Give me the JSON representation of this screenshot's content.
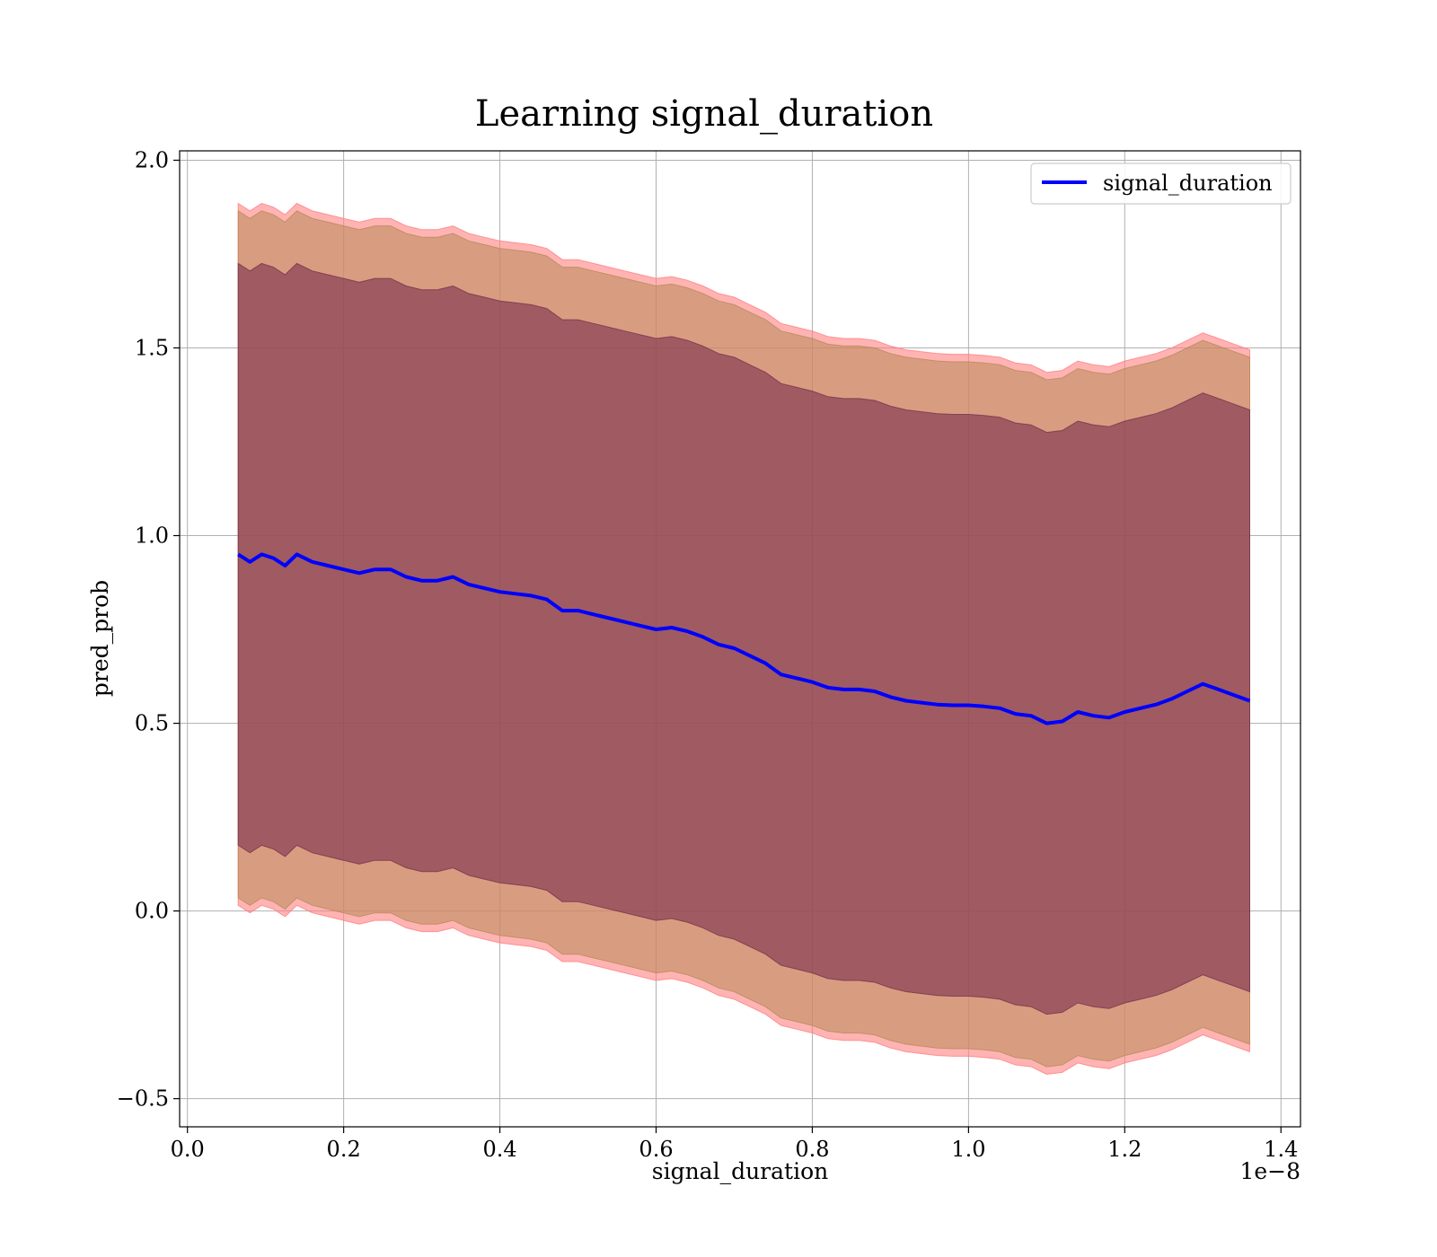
{
  "chart_data": {
    "type": "line",
    "title": "Learning signal_duration",
    "xlabel": "signal_duration",
    "ylabel": "pred_prob",
    "x_offset_label": "1e−8",
    "xlim": [
      -0.01,
      1.425
    ],
    "ylim": [
      -0.575,
      2.025
    ],
    "x_ticks": [
      0.0,
      0.2,
      0.4,
      0.6,
      0.8,
      1.0,
      1.2,
      1.4
    ],
    "x_tick_labels": [
      "0.0",
      "0.2",
      "0.4",
      "0.6",
      "0.8",
      "1.0",
      "1.2",
      "1.4"
    ],
    "y_ticks": [
      -0.5,
      0.0,
      0.5,
      1.0,
      1.5,
      2.0
    ],
    "y_tick_labels": [
      "−0.5",
      "0.0",
      "0.5",
      "1.0",
      "1.5",
      "2.0"
    ],
    "grid": true,
    "legend_position": "top-right",
    "series": [
      {
        "name": "signal_duration",
        "color": "#0000ff",
        "x": [
          0.065,
          0.08,
          0.095,
          0.11,
          0.125,
          0.14,
          0.16,
          0.18,
          0.2,
          0.22,
          0.24,
          0.26,
          0.28,
          0.3,
          0.32,
          0.34,
          0.36,
          0.38,
          0.4,
          0.42,
          0.44,
          0.46,
          0.48,
          0.5,
          0.52,
          0.54,
          0.56,
          0.58,
          0.6,
          0.62,
          0.64,
          0.66,
          0.68,
          0.7,
          0.72,
          0.74,
          0.76,
          0.78,
          0.8,
          0.82,
          0.84,
          0.86,
          0.88,
          0.9,
          0.92,
          0.94,
          0.96,
          0.98,
          1.0,
          1.02,
          1.04,
          1.06,
          1.08,
          1.1,
          1.12,
          1.14,
          1.16,
          1.18,
          1.2,
          1.22,
          1.24,
          1.26,
          1.28,
          1.3,
          1.32,
          1.34,
          1.36
        ],
        "y": [
          0.95,
          0.93,
          0.95,
          0.94,
          0.92,
          0.95,
          0.93,
          0.92,
          0.91,
          0.9,
          0.91,
          0.91,
          0.89,
          0.88,
          0.88,
          0.89,
          0.87,
          0.86,
          0.85,
          0.845,
          0.84,
          0.83,
          0.8,
          0.8,
          0.79,
          0.78,
          0.77,
          0.76,
          0.75,
          0.755,
          0.745,
          0.73,
          0.71,
          0.7,
          0.68,
          0.66,
          0.63,
          0.62,
          0.61,
          0.595,
          0.59,
          0.59,
          0.585,
          0.57,
          0.56,
          0.555,
          0.55,
          0.548,
          0.548,
          0.545,
          0.54,
          0.525,
          0.52,
          0.5,
          0.505,
          0.53,
          0.52,
          0.515,
          0.53,
          0.54,
          0.55,
          0.565,
          0.585,
          0.605,
          0.59,
          0.575,
          0.56
        ]
      }
    ],
    "bands": [
      {
        "label": "outer",
        "color": "#ff8080",
        "opacity": 0.6,
        "offset": 0.935
      },
      {
        "label": "middle",
        "color": "#b88a58",
        "opacity": 0.55,
        "offset": 0.915
      },
      {
        "label": "inner",
        "color": "#7a2f4c",
        "opacity": 0.6,
        "offset": 0.775
      }
    ]
  }
}
